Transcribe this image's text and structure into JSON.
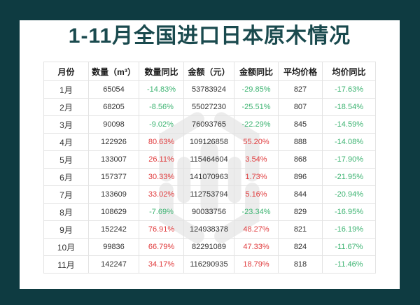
{
  "colors": {
    "background": "#0e3b41",
    "card": "#ffffff",
    "title": "#1a4a4e",
    "increase_red": "#e03b3d",
    "decrease_green": "#3cb371",
    "text": "#333333",
    "grid_line": "#e3e3e3",
    "watermark_gray": "#d6d6d6"
  },
  "watermark": {
    "name": "logo-watermark"
  },
  "chart_data": {
    "type": "table",
    "title": "1-11月全国进口日本原木情况",
    "columns": [
      "月份",
      "数量（m³）",
      "数量同比",
      "金额（元）",
      "金额同比",
      "平均价格",
      "均价同比"
    ],
    "yoy_column_indexes": [
      2,
      4,
      6
    ],
    "rows": [
      [
        "1月",
        "65054",
        "-14.83%",
        "53783924",
        "-29.85%",
        "827",
        "-17.63%"
      ],
      [
        "2月",
        "68205",
        "-8.56%",
        "55027230",
        "-25.51%",
        "807",
        "-18.54%"
      ],
      [
        "3月",
        "90098",
        "-9.02%",
        "76093765",
        "-22.29%",
        "845",
        "-14.59%"
      ],
      [
        "4月",
        "122926",
        "80.63%",
        "109126858",
        "55.20%",
        "888",
        "-14.08%"
      ],
      [
        "5月",
        "133007",
        "26.11%",
        "115464604",
        "3.54%",
        "868",
        "-17.90%"
      ],
      [
        "6月",
        "157377",
        "30.33%",
        "141070963",
        "1.73%",
        "896",
        "-21.95%"
      ],
      [
        "7月",
        "133609",
        "33.02%",
        "112753794",
        "5.16%",
        "844",
        "-20.94%"
      ],
      [
        "8月",
        "108629",
        "-7.69%",
        "90033756",
        "-23.34%",
        "829",
        "-16.95%"
      ],
      [
        "9月",
        "152242",
        "76.91%",
        "124938378",
        "48.27%",
        "821",
        "-16.19%"
      ],
      [
        "10月",
        "99836",
        "66.79%",
        "82291089",
        "47.33%",
        "824",
        "-11.67%"
      ],
      [
        "11月",
        "142247",
        "34.17%",
        "116290935",
        "18.79%",
        "818",
        "-11.46%"
      ]
    ]
  }
}
